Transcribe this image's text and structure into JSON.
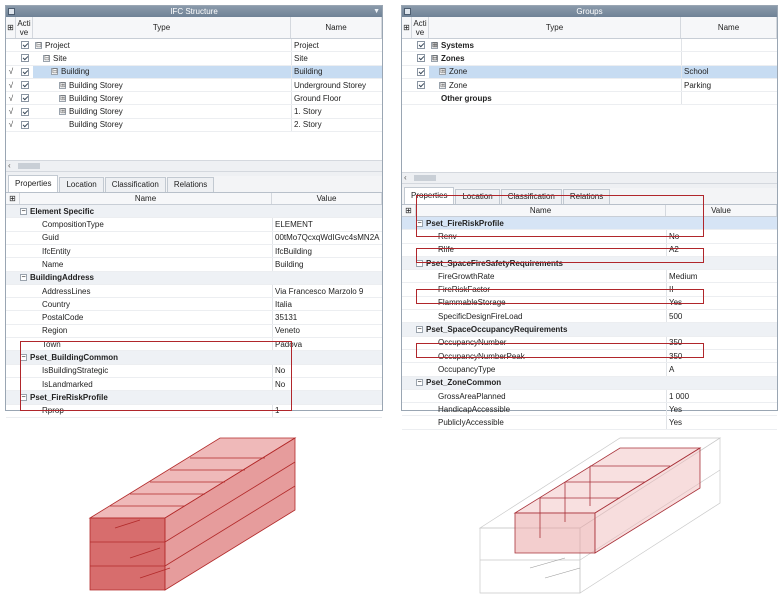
{
  "colors": {
    "accent_red": "#b0262b",
    "selection": "#c7dcf2",
    "title_bar": "#7a8ba0"
  },
  "left_panel": {
    "title": "IFC Structure",
    "col_active": "Acti ve",
    "col_type": "Type",
    "col_name": "Name",
    "rows": [
      {
        "type": "Project",
        "name": "Project",
        "expander": "⊟",
        "mark": ""
      },
      {
        "type": "Site",
        "name": "Site",
        "expander": "⊟",
        "mark": ""
      },
      {
        "type": "Building",
        "name": "Building",
        "expander": "⊟",
        "mark": "√"
      },
      {
        "type": "Building Storey",
        "name": "Underground Storey",
        "expander": "⊞",
        "mark": "√"
      },
      {
        "type": "Building Storey",
        "name": "Ground Floor",
        "expander": "⊞",
        "mark": "√"
      },
      {
        "type": "Building Storey",
        "name": "1. Story",
        "expander": "⊞",
        "mark": "√"
      },
      {
        "type": "Building Storey",
        "name": "2. Story",
        "expander": "",
        "mark": "√"
      }
    ],
    "tabs": [
      "Properties",
      "Location",
      "Classification",
      "Relations"
    ],
    "prop_col_name": "Name",
    "prop_col_value": "Value",
    "properties": [
      {
        "name": "Element Specific",
        "value": "",
        "group": true
      },
      {
        "name": "CompositionType",
        "value": "ELEMENT"
      },
      {
        "name": "Guid",
        "value": "00tMo7QcxqWdIGvc4sMN2A"
      },
      {
        "name": "IfcEntity",
        "value": "IfcBuilding"
      },
      {
        "name": "Name",
        "value": "Building"
      },
      {
        "name": "BuildingAddress",
        "value": "",
        "group": true
      },
      {
        "name": "AddressLines",
        "value": "Via Francesco Marzolo 9"
      },
      {
        "name": "Country",
        "value": "Italia"
      },
      {
        "name": "PostalCode",
        "value": "35131"
      },
      {
        "name": "Region",
        "value": "Veneto"
      },
      {
        "name": "Town",
        "value": "Padova"
      },
      {
        "name": "Pset_BuildingCommon",
        "value": "",
        "group": true
      },
      {
        "name": "IsBuildingStrategic",
        "value": "No"
      },
      {
        "name": "IsLandmarked",
        "value": "No"
      },
      {
        "name": "Pset_FireRiskProfile",
        "value": "",
        "group": true
      },
      {
        "name": "Rprop",
        "value": "1"
      }
    ]
  },
  "right_panel": {
    "title": "Groups",
    "col_active": "Acti ve",
    "col_type": "Type",
    "col_name": "Name",
    "rows": [
      {
        "type": "Systems",
        "name": "",
        "expander": "⊞",
        "bold": true
      },
      {
        "type": "Zones",
        "name": "",
        "expander": "⊟",
        "bold": true
      },
      {
        "type": "Zone",
        "name": "School",
        "expander": "⊞",
        "bold": false
      },
      {
        "type": "Zone",
        "name": "Parking",
        "expander": "⊞",
        "bold": false
      },
      {
        "type": "Other groups",
        "name": "",
        "expander": "",
        "bold": true
      }
    ],
    "tabs": [
      "Properties",
      "Location",
      "Classification",
      "Relations"
    ],
    "prop_col_name": "Name",
    "prop_col_value": "Value",
    "properties": [
      {
        "name": "Pset_FireRiskProfile",
        "value": "",
        "group": true
      },
      {
        "name": "Renv",
        "value": "No"
      },
      {
        "name": "Rlife",
        "value": "A2"
      },
      {
        "name": "Pset_SpaceFireSafetyRequirements",
        "value": "",
        "group": true
      },
      {
        "name": "FireGrowthRate",
        "value": "Medium"
      },
      {
        "name": "FireRiskFactor",
        "value": "II"
      },
      {
        "name": "FlammableStorage",
        "value": "Yes"
      },
      {
        "name": "SpecificDesignFireLoad",
        "value": "500"
      },
      {
        "name": "Pset_SpaceOccupancyRequirements",
        "value": "",
        "group": true
      },
      {
        "name": "OccupancyNumber",
        "value": "350"
      },
      {
        "name": "OccupancyNumberPeak",
        "value": "350"
      },
      {
        "name": "OccupancyType",
        "value": "A"
      },
      {
        "name": "Pset_ZoneCommon",
        "value": "",
        "group": true
      },
      {
        "name": "GrossAreaPlanned",
        "value": "1 000"
      },
      {
        "name": "HandicapAccessible",
        "value": "Yes"
      },
      {
        "name": "PubliclyAccessible",
        "value": "Yes"
      }
    ]
  }
}
